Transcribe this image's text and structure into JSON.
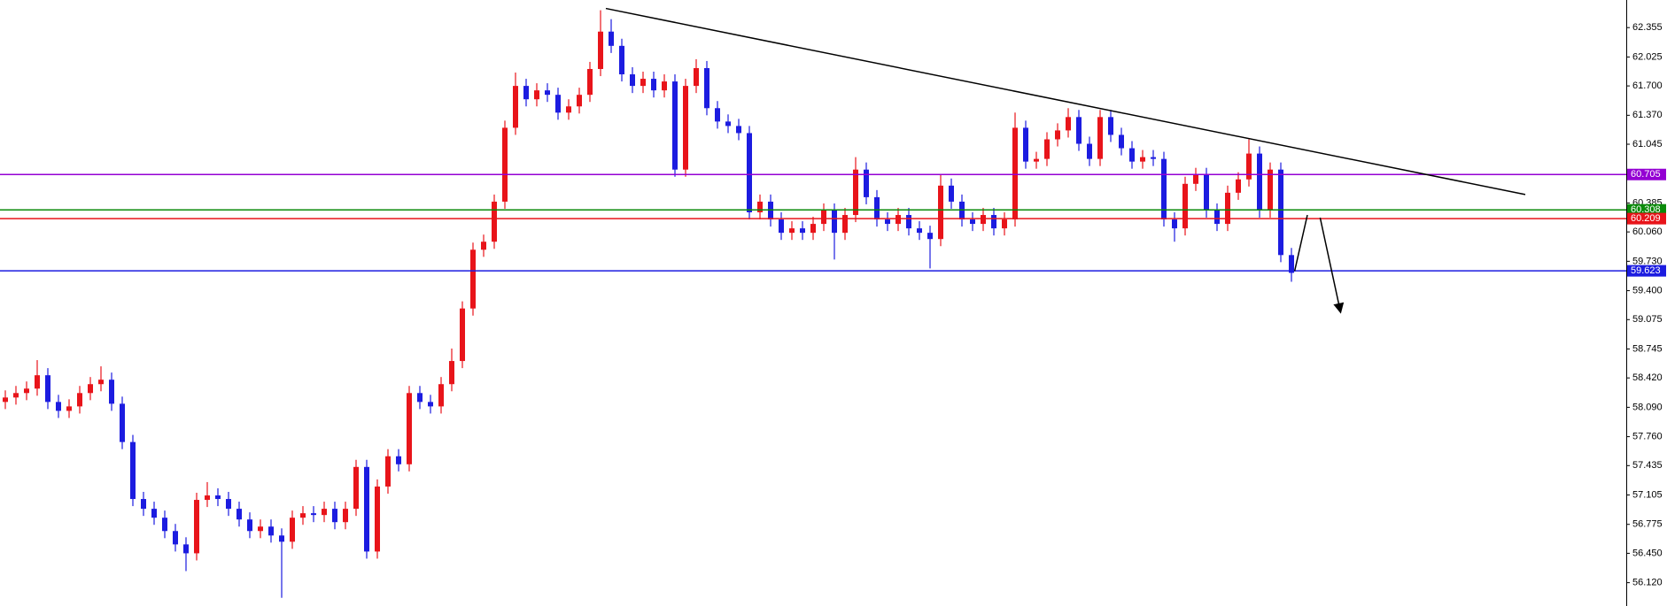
{
  "chart_data": {
    "type": "candlestick",
    "up_color": "#e8141a",
    "down_color": "#1c1ce0",
    "open": [
      58.15,
      58.2,
      58.25,
      58.3,
      58.45,
      58.15,
      58.05,
      58.1,
      58.25,
      58.35,
      58.4,
      58.13,
      57.7,
      57.06,
      56.95,
      56.85,
      56.7,
      56.55,
      56.45,
      57.05,
      57.1,
      57.06,
      56.95,
      56.83,
      56.7,
      56.75,
      56.65,
      56.58,
      56.85,
      56.9,
      56.88,
      56.95,
      56.8,
      56.95,
      57.42,
      56.47,
      57.2,
      57.54,
      57.45,
      58.25,
      58.15,
      58.1,
      58.35,
      58.61,
      59.2,
      59.86,
      59.95,
      60.4,
      61.23,
      61.7,
      61.55,
      61.65,
      61.6,
      61.4,
      61.47,
      61.6,
      61.89,
      62.31,
      62.15,
      61.83,
      61.7,
      61.78,
      61.65,
      61.75,
      60.76,
      61.7,
      61.9,
      61.45,
      61.3,
      61.25,
      61.17,
      60.28,
      60.4,
      60.2,
      60.05,
      60.1,
      60.05,
      60.15,
      60.3,
      60.05,
      60.25,
      60.76,
      60.45,
      60.2,
      60.15,
      60.25,
      60.1,
      60.05,
      59.98,
      60.58,
      60.4,
      60.2,
      60.15,
      60.25,
      60.1,
      60.2,
      61.23,
      60.85,
      60.88,
      61.1,
      61.2,
      61.35,
      61.05,
      60.88,
      61.35,
      61.15,
      61.0,
      60.85,
      60.9,
      60.88,
      60.2,
      60.1,
      60.6,
      60.7,
      60.3,
      60.15,
      60.5,
      60.65,
      60.94,
      60.3,
      60.76,
      59.8
    ],
    "high": [
      58.28,
      58.33,
      58.38,
      58.62,
      58.53,
      58.23,
      58.18,
      58.33,
      58.43,
      58.55,
      58.48,
      58.21,
      57.78,
      57.14,
      57.03,
      56.93,
      56.78,
      56.63,
      57.13,
      57.25,
      57.18,
      57.14,
      57.03,
      56.91,
      56.83,
      56.83,
      56.73,
      56.93,
      56.98,
      56.98,
      57.03,
      57.03,
      57.03,
      57.5,
      57.5,
      57.28,
      57.62,
      57.62,
      58.33,
      58.33,
      58.23,
      58.43,
      58.75,
      59.28,
      59.94,
      60.03,
      60.48,
      61.31,
      61.85,
      61.78,
      61.73,
      61.73,
      61.68,
      61.55,
      61.68,
      61.97,
      62.55,
      62.45,
      62.23,
      61.91,
      61.86,
      61.86,
      61.83,
      61.83,
      61.78,
      62.0,
      61.98,
      61.53,
      61.38,
      61.33,
      61.25,
      60.48,
      60.48,
      60.28,
      60.18,
      60.18,
      60.23,
      60.38,
      60.38,
      60.33,
      60.9,
      60.84,
      60.53,
      60.28,
      60.33,
      60.33,
      60.18,
      60.13,
      60.7,
      60.66,
      60.48,
      60.28,
      60.33,
      60.33,
      60.28,
      61.4,
      61.31,
      60.96,
      61.18,
      61.28,
      61.45,
      61.43,
      61.13,
      61.43,
      61.43,
      61.23,
      61.08,
      60.98,
      60.98,
      60.96,
      60.28,
      60.68,
      60.78,
      60.78,
      60.38,
      60.58,
      60.73,
      61.1,
      61.02,
      60.84,
      60.84,
      59.88
    ],
    "low": [
      58.07,
      58.12,
      58.17,
      58.22,
      58.07,
      57.97,
      57.97,
      58.02,
      58.17,
      58.27,
      58.05,
      57.62,
      56.98,
      56.87,
      56.77,
      56.62,
      56.47,
      56.25,
      56.37,
      56.97,
      56.98,
      56.87,
      56.75,
      56.62,
      56.62,
      56.57,
      55.95,
      56.5,
      56.77,
      56.8,
      56.8,
      56.72,
      56.72,
      56.87,
      56.39,
      56.39,
      57.12,
      57.37,
      57.37,
      58.07,
      58.02,
      58.02,
      58.27,
      58.53,
      59.12,
      59.78,
      59.87,
      60.32,
      61.15,
      61.47,
      61.47,
      61.52,
      61.32,
      61.32,
      61.39,
      61.52,
      61.81,
      62.07,
      61.75,
      61.62,
      61.62,
      61.57,
      61.57,
      60.68,
      60.68,
      61.62,
      61.37,
      61.22,
      61.17,
      61.09,
      60.2,
      60.2,
      60.12,
      59.97,
      59.97,
      59.97,
      59.97,
      60.07,
      59.75,
      59.97,
      60.17,
      60.37,
      60.12,
      60.07,
      60.07,
      60.02,
      59.97,
      59.65,
      59.9,
      60.32,
      60.12,
      60.07,
      60.07,
      60.02,
      60.02,
      60.12,
      60.77,
      60.77,
      60.8,
      61.02,
      61.12,
      60.97,
      60.8,
      60.8,
      61.07,
      60.92,
      60.77,
      60.77,
      60.8,
      60.12,
      59.95,
      60.02,
      60.52,
      60.22,
      60.07,
      60.07,
      60.42,
      60.57,
      60.22,
      60.22,
      59.72,
      59.5
    ],
    "close": [
      58.2,
      58.25,
      58.3,
      58.45,
      58.15,
      58.05,
      58.1,
      58.25,
      58.35,
      58.4,
      58.13,
      57.7,
      57.06,
      56.95,
      56.85,
      56.7,
      56.55,
      56.45,
      57.05,
      57.1,
      57.06,
      56.95,
      56.83,
      56.7,
      56.75,
      56.65,
      56.58,
      56.85,
      56.9,
      56.88,
      56.95,
      56.8,
      56.95,
      57.42,
      56.47,
      57.2,
      57.54,
      57.45,
      58.25,
      58.15,
      58.1,
      58.35,
      58.61,
      59.2,
      59.86,
      59.95,
      60.4,
      61.23,
      61.7,
      61.55,
      61.65,
      61.6,
      61.4,
      61.47,
      61.6,
      61.89,
      62.31,
      62.15,
      61.83,
      61.7,
      61.78,
      61.65,
      61.75,
      60.76,
      61.7,
      61.9,
      61.45,
      61.3,
      61.25,
      61.17,
      60.28,
      60.4,
      60.2,
      60.05,
      60.1,
      60.05,
      60.15,
      60.3,
      60.05,
      60.25,
      60.76,
      60.45,
      60.2,
      60.15,
      60.25,
      60.1,
      60.05,
      59.98,
      60.58,
      60.4,
      60.2,
      60.15,
      60.25,
      60.1,
      60.2,
      61.23,
      60.85,
      60.88,
      61.1,
      61.2,
      61.35,
      61.05,
      60.88,
      61.35,
      61.15,
      61.0,
      60.85,
      60.9,
      60.88,
      60.2,
      60.1,
      60.6,
      60.7,
      60.3,
      60.15,
      60.5,
      60.65,
      60.94,
      60.3,
      60.76,
      59.8,
      59.6
    ],
    "ylim": [
      55.858,
      62.665
    ],
    "yticks": [
      62.355,
      62.025,
      {
        "value": 61.7,
        "label": "61.700"
      },
      {
        "value": 61.37,
        "label": "61.370"
      },
      61.045,
      60.385,
      {
        "value": 60.06,
        "label": "60.060"
      },
      {
        "value": 59.73,
        "label": "59.730"
      },
      {
        "value": 59.4,
        "label": "59.400"
      },
      59.075,
      58.745,
      {
        "value": 58.42,
        "label": "58.420"
      },
      {
        "value": 58.09,
        "label": "58.090"
      },
      {
        "value": 57.76,
        "label": "57.760"
      },
      57.435,
      57.105,
      56.775,
      {
        "value": 56.45,
        "label": "56.450"
      },
      {
        "value": 56.12,
        "label": "56.120"
      }
    ],
    "levels": [
      {
        "value": 60.705,
        "color": "#9400d3"
      },
      {
        "value": 60.308,
        "color": "#0a8a0a"
      },
      {
        "value": 60.209,
        "color": "#e8141a"
      },
      {
        "value": 59.623,
        "color": "#1c1ce0"
      }
    ],
    "trendline": {
      "x": [
        56.5,
        143
      ],
      "y": [
        62.57,
        60.48
      ]
    },
    "arrows": [
      {
        "x": [
          121.3,
          122.5
        ],
        "y": [
          59.62,
          60.25
        ]
      },
      {
        "x": [
          123.7,
          125.6
        ],
        "y": [
          60.22,
          59.17
        ]
      }
    ]
  }
}
